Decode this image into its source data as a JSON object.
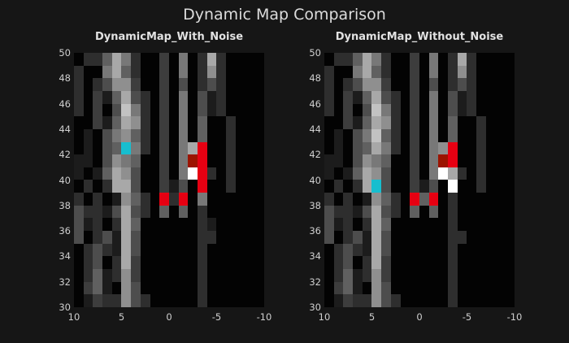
{
  "figure": {
    "title": "Dynamic Map Comparison",
    "background": "#161616",
    "panel_background": "#030303",
    "text_color": "#dcdcdc",
    "tick_color": "#cfcfcf"
  },
  "chart_data": {
    "type": "heatmap",
    "title": "Dynamic Map Comparison",
    "x_range": [
      10,
      -10
    ],
    "y_range": [
      30,
      50
    ],
    "x_tick_labels": [
      "10",
      "5",
      "0",
      "-5",
      "-10"
    ],
    "y_tick_labels": [
      "50",
      "48",
      "46",
      "44",
      "42",
      "40",
      "38",
      "36",
      "34",
      "32",
      "30"
    ],
    "grid_rows": 20,
    "grid_cols": 20,
    "row_order": "grid[0] is top row (y 49..50); columns left-to-right run x 10..-10",
    "palette": {
      ".": "#030303",
      "1": "#1c1c1c",
      "2": "#2e2e2e",
      "3": "#3d3d3d",
      "4": "#4d4d4d",
      "5": "#606060",
      "6": "#787878",
      "7": "#8f8f8f",
      "8": "#a8a8a8",
      "9": "#c2c2c2",
      "A": "#d8d8d8",
      "W": "#ffffff",
      "R": "#e60012",
      "D": "#9b1400",
      "C": "#17becf"
    },
    "panels": [
      {
        "title": "DynamicMap_With_Noise",
        "grid": [
          ".225862..3.6.282....",
          "2..6852..3.6.272....",
          "2.24773..3.4.242....",
          "2.315842.3.6.412....",
          "2.3.4962.3.6.412....",
          "..315872.3.6.5..2...",
          ".1.46752.3.6.5..2...",
          ".1.45C62.3.68R..2...",
          "11.4765..3.6DR..2...",
          "1.15874..3.6WR2.2...",
          ".2.2884..314.R..2...",
          "2.2.1752.R2R.6......",
          "42214842.5.5.2......",
          "412.285......21.....",
          "4.24184......22.....",
          ".242184......2......",
          ".24.283......2......",
          ".251273......2......",
          ".351.74......2......",
          ".1322742.....2......"
        ]
      },
      {
        "title": "DynamicMap_Without_Noise",
        "grid": [
          ".225862..3.6.282....",
          "2..6852..3.6.272....",
          "2.24773..3.4.242....",
          "2.315842.3.6.412....",
          "2.3.4962.3.6.412....",
          "..315872.3.6.5..2...",
          ".1.46952.3.6.5..2...",
          ".1.45862.3.67R..2...",
          "11.4765..3.6DR..2...",
          "1.15874..3.6W82.2...",
          ".2.28C4..314.W..2...",
          "2.2.1752.R5R.2......",
          "42214842.5.5.2......",
          "412.285......2......",
          "4.24184......22.....",
          ".242184......2......",
          ".24.283......2......",
          ".251273......2......",
          ".351.74......2......",
          ".1322742.....2......"
        ]
      }
    ]
  }
}
